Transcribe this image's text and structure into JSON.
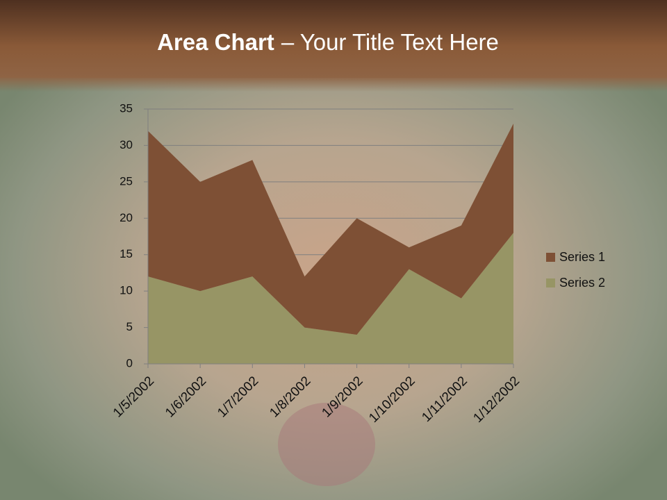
{
  "chart_data": {
    "type": "area",
    "title": [
      "Area Chart",
      "– Your Title Text Here"
    ],
    "categories": [
      "1/5/2002",
      "1/6/2002",
      "1/7/2002",
      "1/8/2002",
      "1/9/2002",
      "1/10/2002",
      "1/11/2002",
      "1/12/2002"
    ],
    "series": [
      {
        "name": "Series 1",
        "color": "#7e5035",
        "values": [
          20,
          15,
          16,
          7,
          16,
          3,
          10,
          15
        ]
      },
      {
        "name": "Series 2",
        "color": "#979565",
        "values": [
          12,
          10,
          12,
          5,
          4,
          13,
          9,
          18
        ]
      }
    ],
    "stacked": true,
    "ylim": [
      0,
      35
    ],
    "yticks": [
      0,
      5,
      10,
      15,
      20,
      25,
      30,
      35
    ],
    "grid": true,
    "legend": "right"
  }
}
